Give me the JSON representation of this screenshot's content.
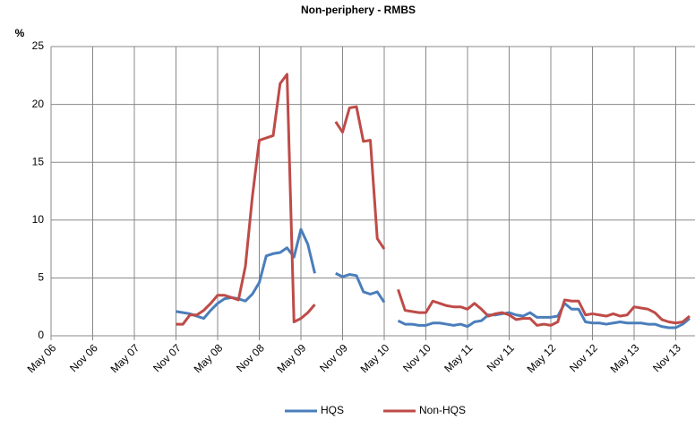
{
  "chart_data": {
    "type": "line",
    "title": "Non-periphery - RMBS",
    "y_label": "%",
    "categories": [
      "May 06",
      null,
      null,
      null,
      null,
      null,
      "Nov 06",
      null,
      null,
      null,
      null,
      null,
      "May 07",
      null,
      null,
      null,
      null,
      null,
      "Nov 07",
      null,
      null,
      null,
      null,
      null,
      "May 08",
      null,
      null,
      null,
      null,
      null,
      "Nov 08",
      null,
      null,
      null,
      null,
      null,
      "May 09",
      null,
      null,
      null,
      null,
      null,
      "Nov 09",
      null,
      null,
      null,
      null,
      null,
      "May 10",
      null,
      null,
      null,
      null,
      null,
      "Nov 10",
      null,
      null,
      null,
      null,
      null,
      "May 11",
      null,
      null,
      null,
      null,
      null,
      "Nov 11",
      null,
      null,
      null,
      null,
      null,
      "May 12",
      null,
      null,
      null,
      null,
      null,
      "Nov 12",
      null,
      null,
      null,
      null,
      null,
      "May 13",
      null,
      null,
      null,
      null,
      null,
      "Nov 13",
      null,
      null
    ],
    "series": [
      {
        "name": "HQS",
        "color": "#4a7ebb",
        "values": [
          null,
          null,
          null,
          null,
          null,
          null,
          null,
          null,
          null,
          null,
          null,
          null,
          null,
          null,
          null,
          null,
          null,
          null,
          2.1,
          2.0,
          1.9,
          1.7,
          1.5,
          2.2,
          2.8,
          3.2,
          3.3,
          3.2,
          3.0,
          3.6,
          4.6,
          6.9,
          7.1,
          7.2,
          7.6,
          6.8,
          9.2,
          7.9,
          5.4,
          null,
          null,
          5.4,
          5.1,
          5.3,
          5.2,
          3.8,
          3.6,
          3.8,
          2.9,
          null,
          1.3,
          1.0,
          1.0,
          0.9,
          0.9,
          1.1,
          1.1,
          1.0,
          0.9,
          1.0,
          0.8,
          1.2,
          1.3,
          1.8,
          1.8,
          1.9,
          2.0,
          1.8,
          1.7,
          2.0,
          1.6,
          1.6,
          1.6,
          1.7,
          2.8,
          2.3,
          2.3,
          1.2,
          1.1,
          1.1,
          1.0,
          1.1,
          1.2,
          1.1,
          1.1,
          1.1,
          1.0,
          1.0,
          0.8,
          0.7,
          0.7,
          1.0,
          1.5
        ]
      },
      {
        "name": "Non-HQS",
        "color": "#be4b48",
        "values": [
          null,
          null,
          null,
          null,
          null,
          null,
          null,
          null,
          null,
          null,
          null,
          null,
          null,
          null,
          null,
          null,
          null,
          null,
          1.0,
          1.0,
          1.8,
          1.8,
          2.2,
          2.8,
          3.5,
          3.5,
          3.3,
          3.1,
          6.0,
          12.0,
          16.9,
          17.1,
          17.3,
          21.8,
          22.6,
          1.2,
          1.5,
          2.0,
          2.7,
          null,
          null,
          18.5,
          17.6,
          19.7,
          19.8,
          16.8,
          16.9,
          8.4,
          7.5,
          null,
          4.0,
          2.2,
          2.1,
          2.0,
          2.0,
          3.0,
          2.8,
          2.6,
          2.5,
          2.5,
          2.3,
          2.8,
          2.3,
          1.7,
          1.9,
          2.0,
          1.8,
          1.4,
          1.5,
          1.5,
          0.9,
          1.0,
          0.9,
          1.2,
          3.1,
          3.0,
          3.0,
          1.8,
          1.9,
          1.8,
          1.7,
          1.9,
          1.7,
          1.8,
          2.5,
          2.4,
          2.3,
          2.0,
          1.4,
          1.2,
          1.1,
          1.2,
          1.7
        ]
      }
    ],
    "ylim": [
      0,
      25
    ],
    "yticks": [
      0,
      5,
      10,
      15,
      20,
      25
    ],
    "grid": true,
    "legend": "bottom"
  }
}
